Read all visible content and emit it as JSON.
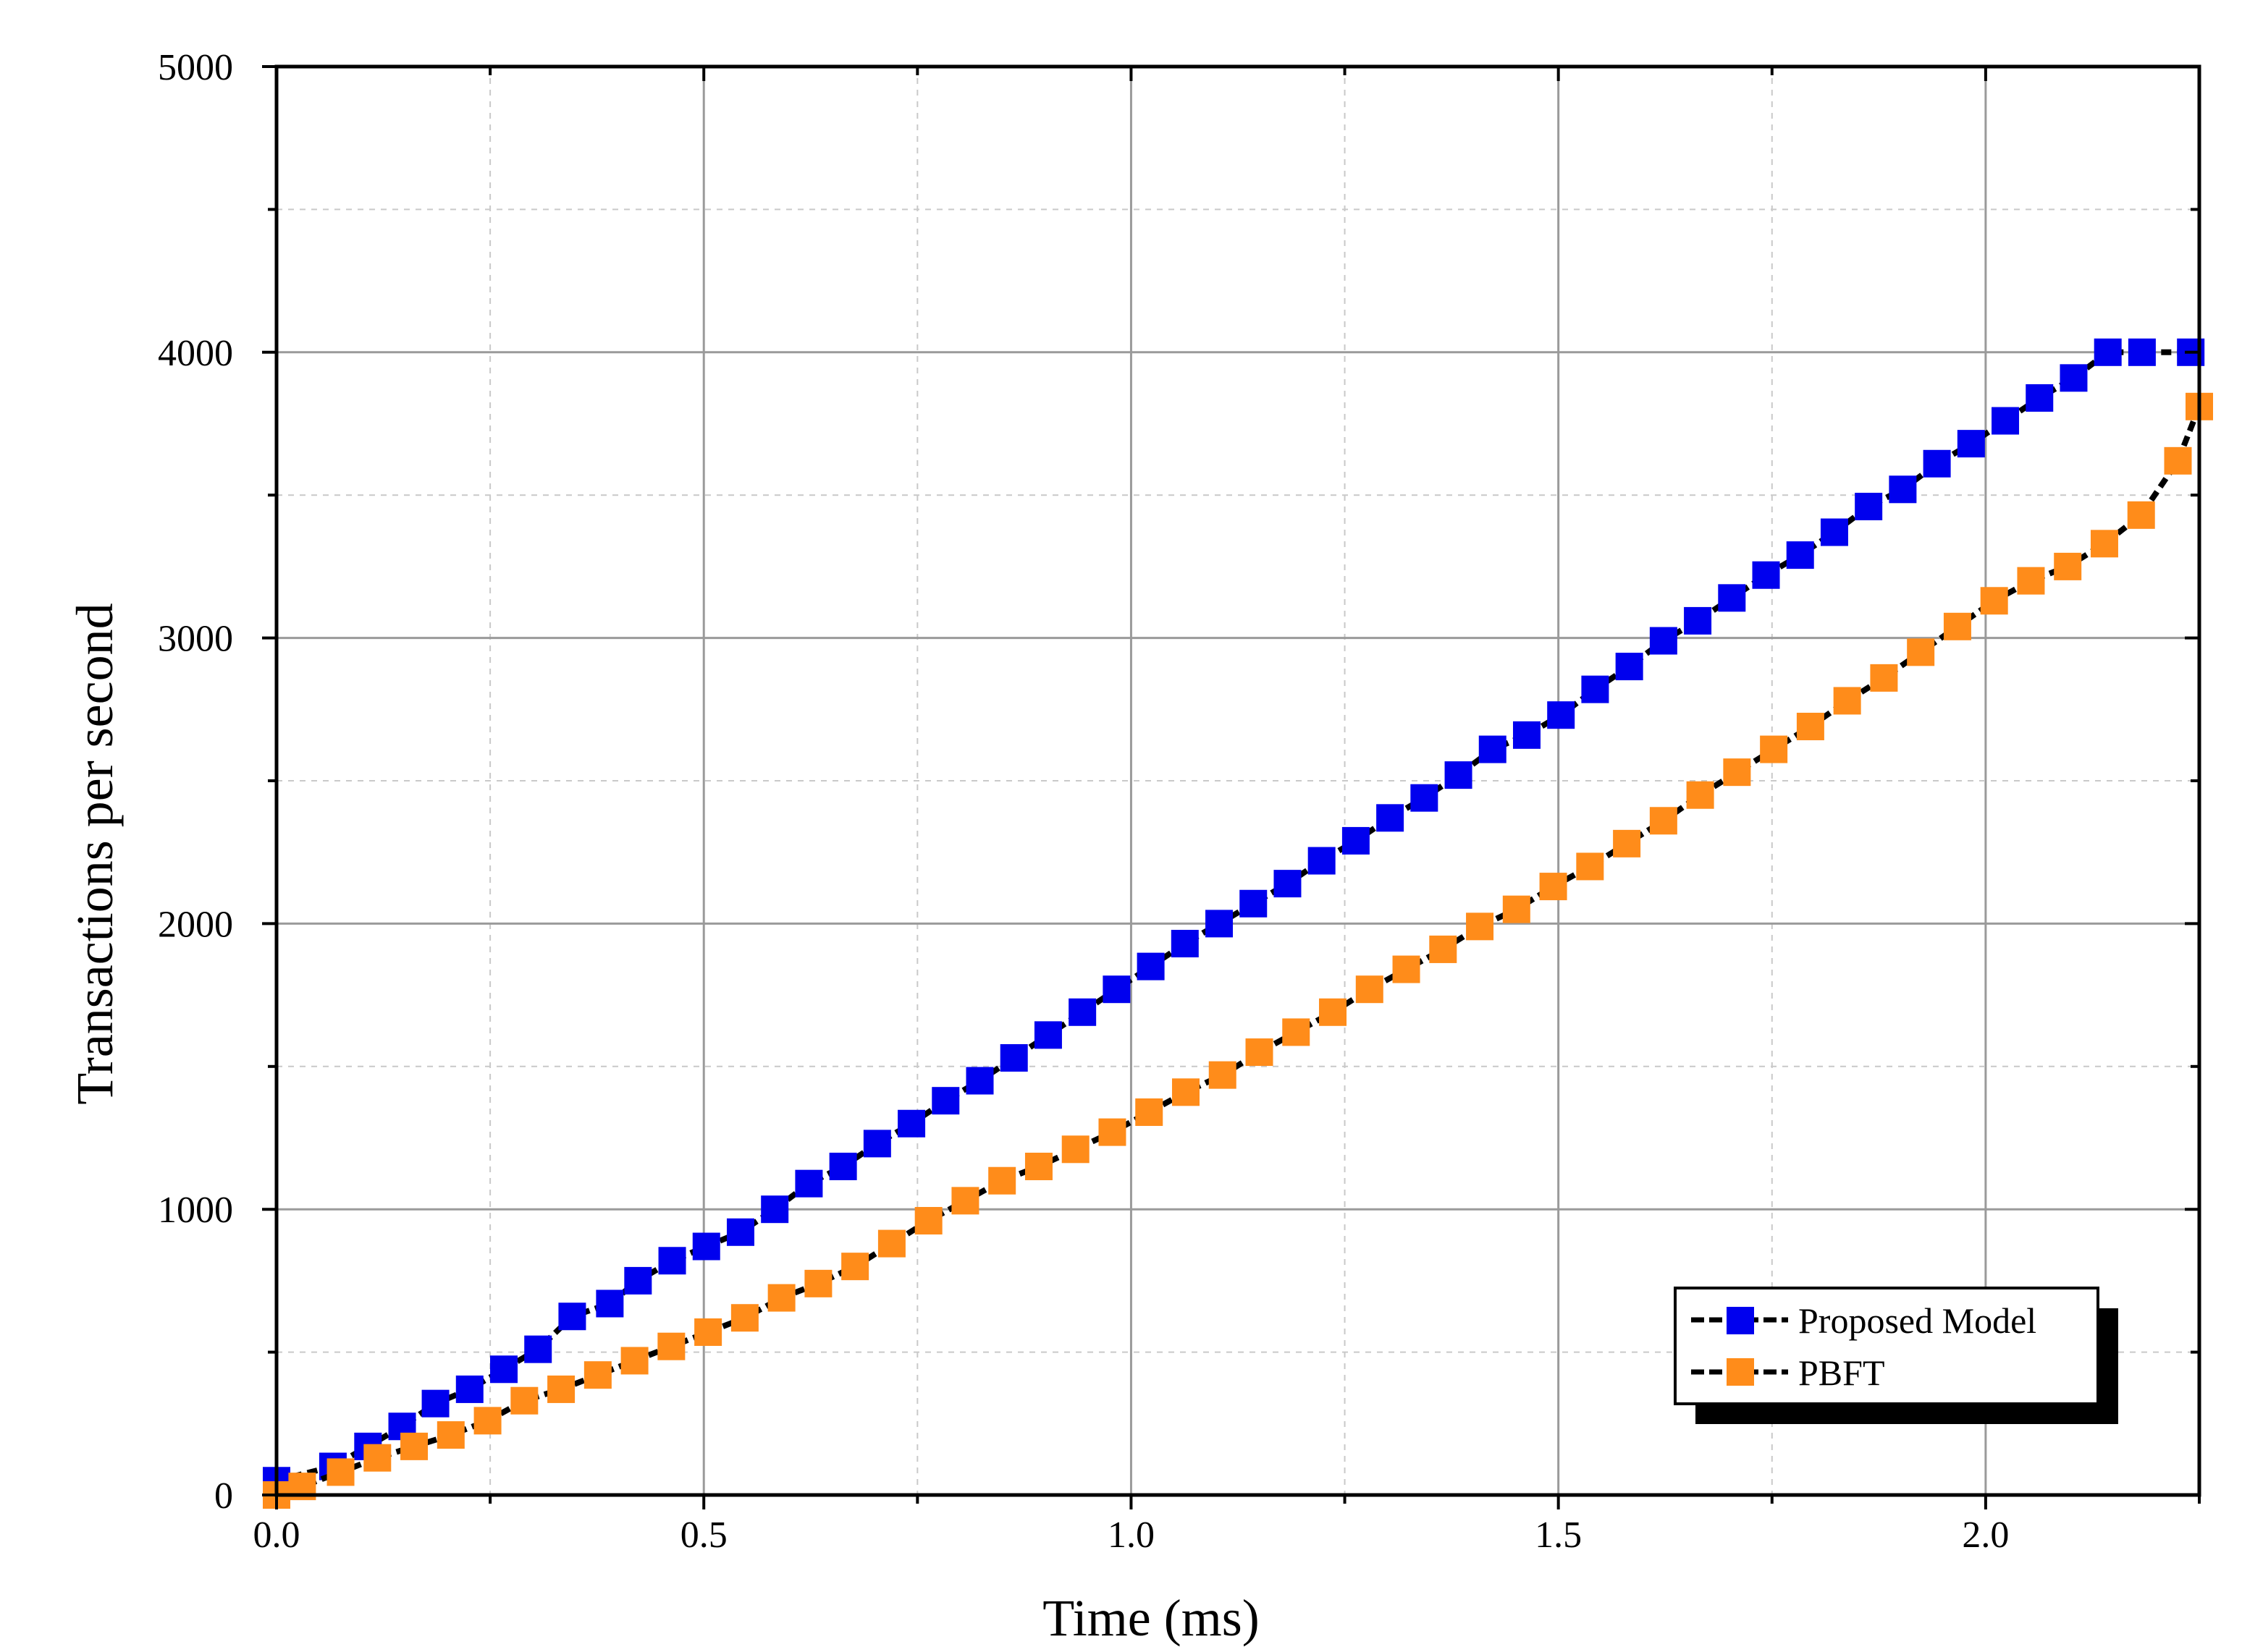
{
  "chart_data": {
    "type": "line",
    "title": "",
    "xlabel": "Time (ms)",
    "ylabel": "Transactions per second",
    "xlim": [
      0,
      2.25
    ],
    "ylim": [
      0,
      5000
    ],
    "x_ticks": [
      "0.0",
      "0.5",
      "1.0",
      "1.5",
      "2.0"
    ],
    "y_ticks": [
      "0",
      "1000",
      "2000",
      "3000",
      "4000",
      "5000"
    ],
    "grid": true,
    "legend_position": "bottom-right",
    "series": [
      {
        "name": "Proposed Model",
        "marker_color": "#0000ee",
        "line_color": "#000000",
        "x": [
          0.0,
          0.066,
          0.107,
          0.147,
          0.186,
          0.226,
          0.266,
          0.306,
          0.346,
          0.39,
          0.423,
          0.463,
          0.503,
          0.543,
          0.583,
          0.623,
          0.663,
          0.703,
          0.743,
          0.783,
          0.823,
          0.863,
          0.903,
          0.943,
          0.983,
          1.023,
          1.063,
          1.103,
          1.143,
          1.183,
          1.223,
          1.263,
          1.303,
          1.343,
          1.383,
          1.423,
          1.463,
          1.503,
          1.543,
          1.583,
          1.623,
          1.663,
          1.703,
          1.743,
          1.783,
          1.823,
          1.863,
          1.903,
          1.943,
          1.983,
          2.023,
          2.063,
          2.103,
          2.143,
          2.183,
          2.24
        ],
        "y": [
          50,
          100,
          170,
          240,
          320,
          370,
          440,
          510,
          625,
          670,
          750,
          820,
          870,
          920,
          1000,
          1090,
          1150,
          1230,
          1300,
          1380,
          1450,
          1530,
          1610,
          1690,
          1770,
          1850,
          1930,
          2000,
          2070,
          2140,
          2220,
          2290,
          2370,
          2440,
          2520,
          2610,
          2660,
          2730,
          2820,
          2900,
          2990,
          3060,
          3140,
          3220,
          3290,
          3370,
          3460,
          3520,
          3610,
          3680,
          3760,
          3840,
          3910,
          4000,
          4000,
          4000
        ]
      },
      {
        "name": "PBFT",
        "marker_color": "#ff8c1a",
        "line_color": "#000000",
        "x": [
          0.0,
          0.03,
          0.075,
          0.118,
          0.161,
          0.204,
          0.247,
          0.29,
          0.333,
          0.376,
          0.419,
          0.462,
          0.505,
          0.548,
          0.591,
          0.634,
          0.677,
          0.72,
          0.763,
          0.806,
          0.849,
          0.892,
          0.935,
          0.978,
          1.021,
          1.064,
          1.107,
          1.15,
          1.193,
          1.236,
          1.279,
          1.322,
          1.365,
          1.408,
          1.451,
          1.494,
          1.537,
          1.58,
          1.623,
          1.666,
          1.709,
          1.752,
          1.795,
          1.838,
          1.881,
          1.924,
          1.967,
          2.01,
          2.053,
          2.096,
          2.139,
          2.182,
          2.225,
          2.25
        ],
        "y": [
          0,
          30,
          80,
          130,
          170,
          210,
          260,
          330,
          370,
          420,
          470,
          520,
          570,
          620,
          690,
          740,
          800,
          880,
          960,
          1030,
          1100,
          1150,
          1210,
          1270,
          1340,
          1410,
          1470,
          1550,
          1620,
          1690,
          1770,
          1840,
          1910,
          1990,
          2050,
          2130,
          2200,
          2280,
          2360,
          2450,
          2530,
          2610,
          2690,
          2780,
          2860,
          2950,
          3040,
          3130,
          3200,
          3250,
          3330,
          3430,
          3620,
          3810
        ]
      }
    ]
  }
}
